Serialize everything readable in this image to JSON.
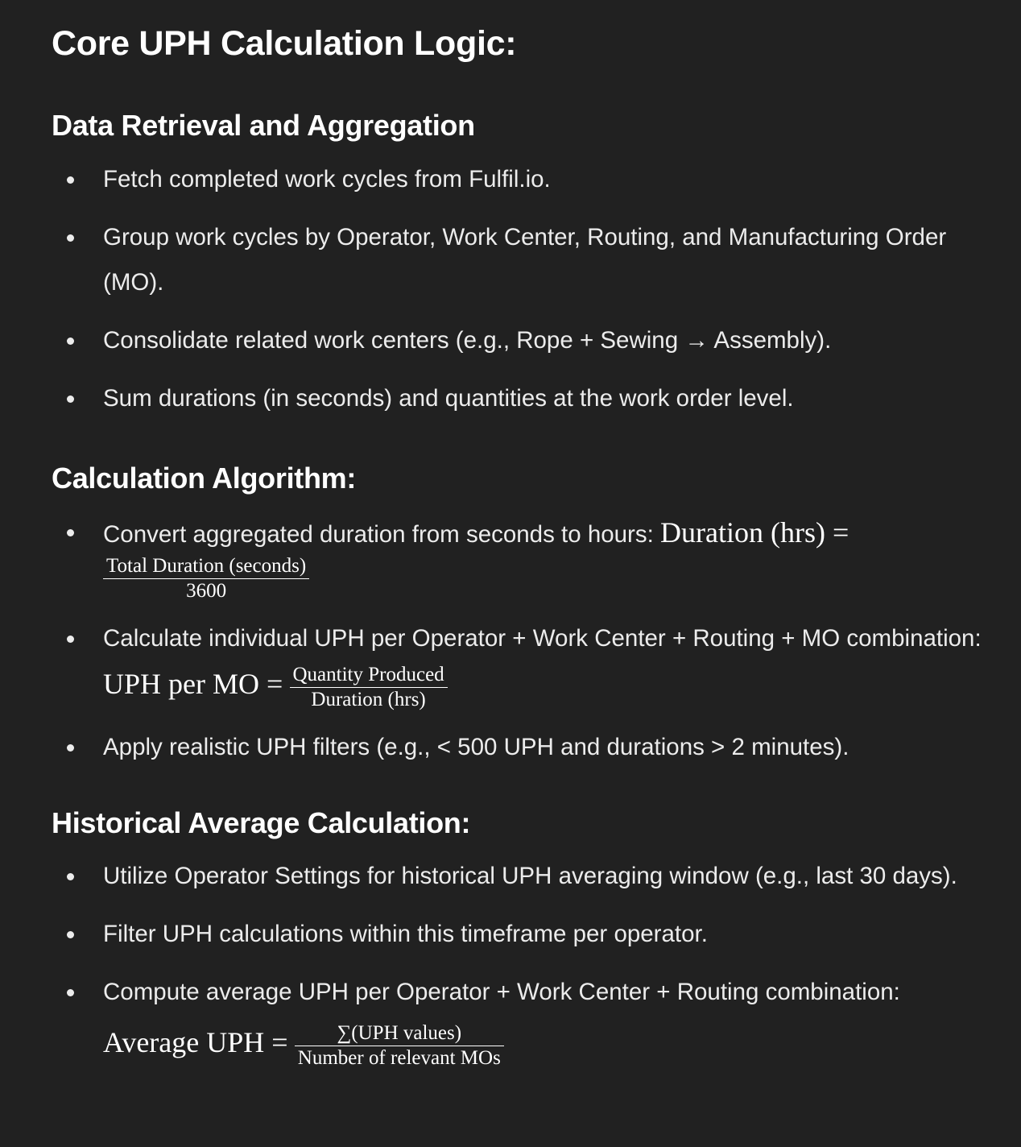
{
  "title": "Core UPH Calculation Logic:",
  "sections": [
    {
      "heading": "Data Retrieval and Aggregation",
      "items": [
        "Fetch completed work cycles from Fulfil.io.",
        "Group work cycles by Operator, Work Center, Routing, and Manufacturing Order (MO).",
        "Consolidate related work centers (e.g., Rope + Sewing → Assembly).",
        "Sum durations (in seconds) and quantities at the work order level."
      ]
    },
    {
      "heading": "Calculation Algorithm:",
      "items": [
        {
          "text": "Convert aggregated duration from seconds to hours:",
          "lhs": "Duration (hrs) =",
          "numerator": "Total Duration (seconds)",
          "denominator": "3600"
        },
        {
          "text": "Calculate individual UPH per Operator + Work Center + Routing + MO combination:",
          "lhs": "UPH per MO =",
          "numerator": "Quantity Produced",
          "denominator": "Duration (hrs)"
        },
        "Apply realistic UPH filters (e.g., < 500 UPH and durations > 2 minutes)."
      ]
    },
    {
      "heading": "Historical Average Calculation:",
      "items": [
        "Utilize Operator Settings for historical UPH averaging window (e.g., last 30 days).",
        "Filter UPH calculations within this timeframe per operator.",
        {
          "text": "Compute average UPH per Operator + Work Center + Routing combination:",
          "lhs": "Average UPH =",
          "numerator": "∑(UPH values)",
          "denominator": "Number of relevant MOs"
        }
      ]
    }
  ]
}
